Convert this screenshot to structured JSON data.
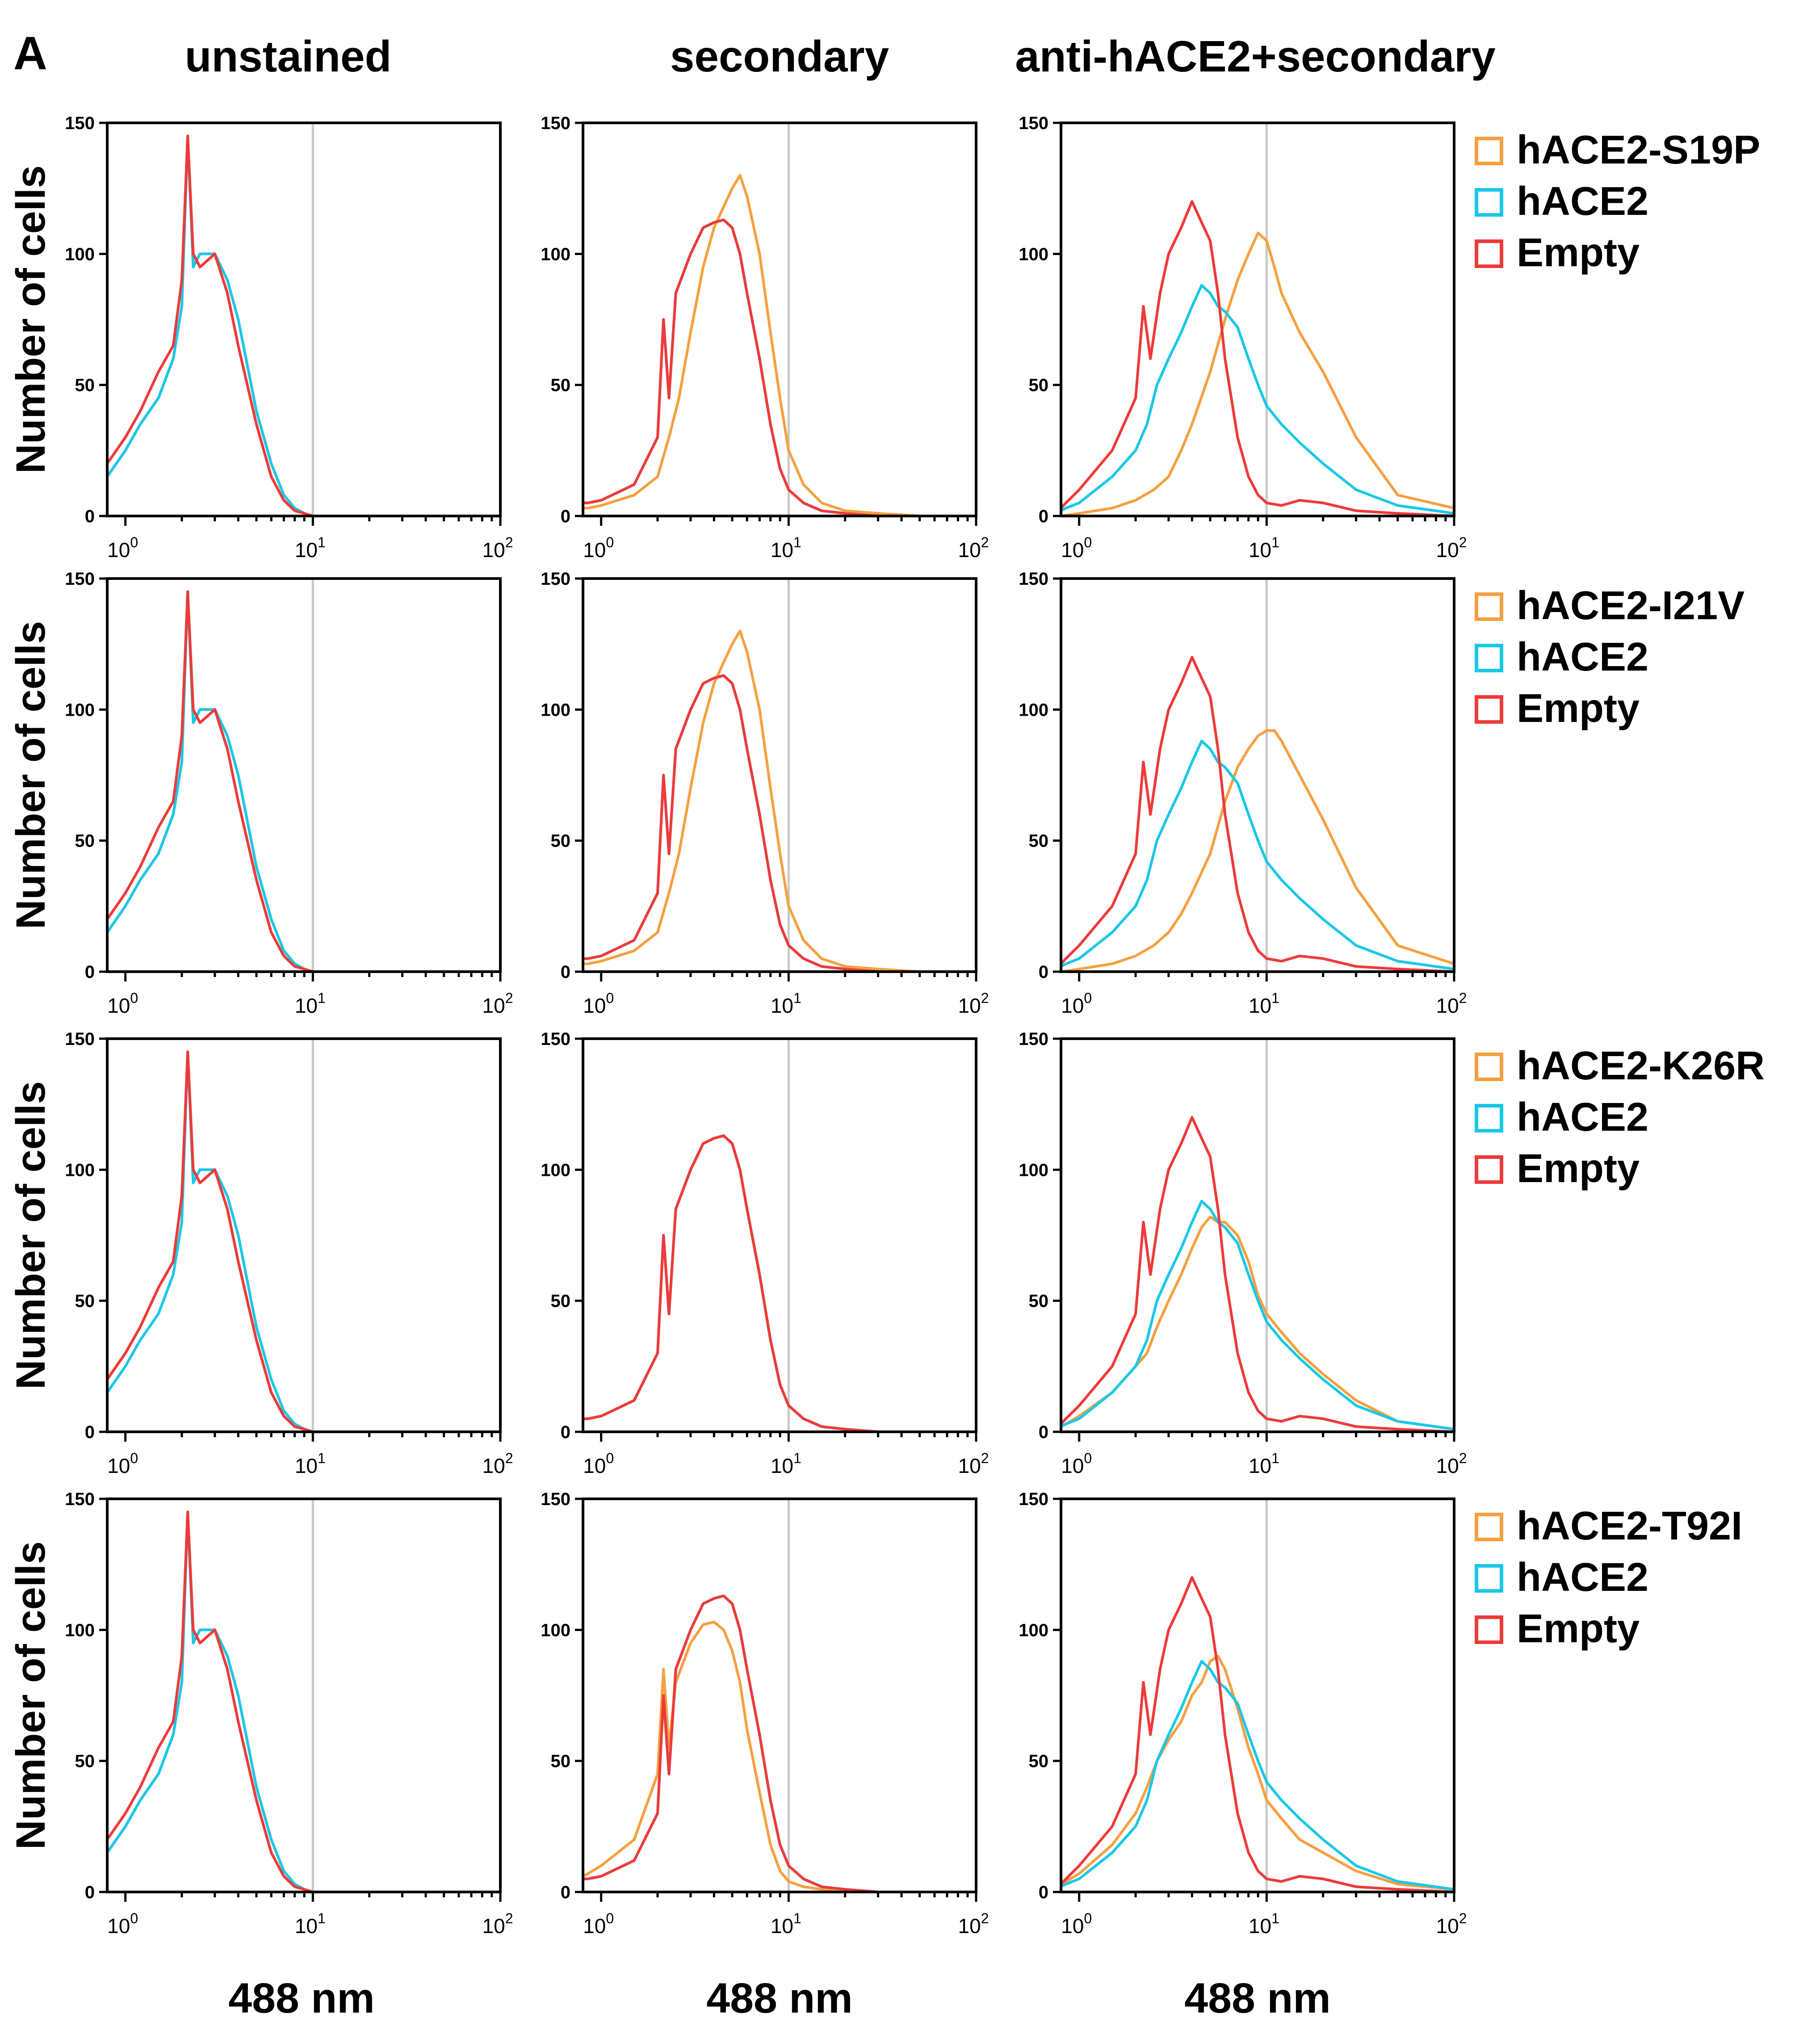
{
  "panel_label": "A",
  "column_titles": [
    "unstained",
    "secondary",
    "anti-hACE2+secondary"
  ],
  "ylabel": "Number of cells",
  "xlabel": "488 nm",
  "colors": {
    "variant": "#f5a040",
    "hACE2": "#19c8e8",
    "empty": "#ee3a3a",
    "gate": "#c8c8c8"
  },
  "legend_rows": [
    {
      "entries": [
        "hACE2-S19P",
        "hACE2",
        "Empty"
      ]
    },
    {
      "entries": [
        "hACE2-I21V",
        "hACE2",
        "Empty"
      ]
    },
    {
      "entries": [
        "hACE2-K26R",
        "hACE2",
        "Empty"
      ]
    },
    {
      "entries": [
        "hACE2-T92I",
        "hACE2",
        "Empty"
      ]
    }
  ],
  "chart_data": {
    "type": "line",
    "description_units": {
      "x": "488 nm fluorescence (log scale)",
      "y": "Number of cells"
    },
    "xscale": "log",
    "xlim": [
      0.8,
      100
    ],
    "ylim": [
      0,
      150
    ],
    "yticks": [
      0,
      50,
      100,
      150
    ],
    "xticks": [
      {
        "base": "10",
        "exp": "0",
        "value": 1
      },
      {
        "base": "10",
        "exp": "1",
        "value": 10
      },
      {
        "base": "10",
        "exp": "2",
        "value": 100
      }
    ],
    "gate_x": 10,
    "profiles": {
      "unstained": {
        "x": [
          0.8,
          1.0,
          1.2,
          1.5,
          1.8,
          2.0,
          2.15,
          2.3,
          2.5,
          3.0,
          3.5,
          4.0,
          5.0,
          6.0,
          7.0,
          8.0,
          9.0,
          10,
          20,
          50,
          100
        ],
        "y": [
          15,
          25,
          35,
          45,
          60,
          80,
          145,
          95,
          100,
          100,
          90,
          75,
          40,
          20,
          8,
          3,
          1,
          0,
          0,
          0,
          0
        ]
      },
      "unstained_alt": {
        "x": [
          0.8,
          1.0,
          1.2,
          1.5,
          1.8,
          2.0,
          2.15,
          2.3,
          2.5,
          3.0,
          3.5,
          4.0,
          5.0,
          6.0,
          7.0,
          8.0,
          9.0,
          10,
          20,
          50,
          100
        ],
        "y": [
          20,
          30,
          40,
          55,
          65,
          90,
          145,
          100,
          95,
          100,
          85,
          65,
          35,
          15,
          6,
          2,
          1,
          0,
          0,
          0,
          0
        ]
      },
      "secondary": {
        "x": [
          0.8,
          0.85,
          1.0,
          1.5,
          2.0,
          2.15,
          2.3,
          2.5,
          3.0,
          3.5,
          4.0,
          4.5,
          5.0,
          5.5,
          6.0,
          7.0,
          8.0,
          9.0,
          10,
          12,
          15,
          20,
          30,
          50,
          100
        ],
        "y": [
          5,
          5,
          6,
          12,
          30,
          75,
          45,
          85,
          100,
          110,
          112,
          113,
          110,
          100,
          85,
          60,
          35,
          18,
          10,
          5,
          2,
          1,
          0,
          0,
          0
        ]
      },
      "secondary_shift": {
        "x": [
          0.8,
          0.85,
          1.0,
          1.5,
          2.0,
          2.3,
          2.6,
          3.0,
          3.5,
          4.0,
          4.5,
          5.0,
          5.5,
          6.0,
          7.0,
          8.0,
          9.0,
          10,
          12,
          15,
          20,
          30,
          50,
          100
        ],
        "y": [
          3,
          3,
          4,
          8,
          15,
          30,
          45,
          70,
          95,
          110,
          118,
          125,
          130,
          122,
          100,
          70,
          45,
          25,
          12,
          5,
          2,
          1,
          0,
          0
        ]
      },
      "secondary_left": {
        "x": [
          0.8,
          0.85,
          1.0,
          1.5,
          2.0,
          2.15,
          2.3,
          2.5,
          3.0,
          3.5,
          4.0,
          4.5,
          5.0,
          5.5,
          6.0,
          7.0,
          8.0,
          9.0,
          10,
          12,
          15,
          20,
          30,
          50,
          100
        ],
        "y": [
          6,
          7,
          10,
          20,
          45,
          85,
          55,
          80,
          95,
          102,
          103,
          100,
          92,
          80,
          62,
          38,
          18,
          8,
          4,
          2,
          1,
          0,
          0,
          0,
          0
        ]
      },
      "empty_stained": {
        "x": [
          0.8,
          0.85,
          1.0,
          1.5,
          2.0,
          2.2,
          2.4,
          2.7,
          3.0,
          3.5,
          4.0,
          4.5,
          5.0,
          5.5,
          6.0,
          7.0,
          8.0,
          9.0,
          10,
          12,
          15,
          20,
          30,
          50,
          100
        ],
        "y": [
          3,
          5,
          10,
          25,
          45,
          80,
          60,
          85,
          100,
          110,
          120,
          112,
          105,
          85,
          60,
          30,
          15,
          8,
          5,
          4,
          6,
          5,
          2,
          1,
          0
        ]
      },
      "hace2_stained": {
        "x": [
          0.8,
          0.85,
          1.0,
          1.5,
          2.0,
          2.3,
          2.6,
          3.0,
          3.5,
          4.0,
          4.5,
          5.0,
          5.5,
          6.0,
          7.0,
          8.0,
          9.0,
          10,
          12,
          15,
          20,
          30,
          50,
          100
        ],
        "y": [
          2,
          3,
          5,
          15,
          25,
          35,
          50,
          60,
          70,
          80,
          88,
          85,
          80,
          78,
          72,
          60,
          50,
          42,
          35,
          28,
          20,
          10,
          4,
          1
        ]
      },
      "s19p_stained": {
        "x": [
          0.8,
          1.0,
          1.5,
          2.0,
          2.5,
          3.0,
          3.5,
          4.0,
          5.0,
          6.0,
          7.0,
          8.0,
          9.0,
          10,
          11,
          12,
          15,
          20,
          30,
          50,
          100
        ],
        "y": [
          0,
          1,
          3,
          6,
          10,
          15,
          25,
          35,
          55,
          75,
          90,
          100,
          108,
          105,
          95,
          85,
          70,
          55,
          30,
          8,
          3
        ]
      },
      "i21v_stained": {
        "x": [
          0.8,
          1.0,
          1.5,
          2.0,
          2.5,
          3.0,
          3.5,
          4.0,
          5.0,
          6.0,
          7.0,
          8.0,
          9.0,
          10,
          11,
          12,
          15,
          20,
          30,
          50,
          100
        ],
        "y": [
          0,
          1,
          3,
          6,
          10,
          15,
          22,
          30,
          45,
          65,
          78,
          85,
          90,
          92,
          92,
          88,
          75,
          58,
          32,
          10,
          3
        ]
      },
      "k26r_stained": {
        "x": [
          0.8,
          0.85,
          1.0,
          1.5,
          2.0,
          2.3,
          2.6,
          3.0,
          3.5,
          4.0,
          4.5,
          5.0,
          5.5,
          6.0,
          7.0,
          8.0,
          9.0,
          10,
          12,
          15,
          20,
          30,
          50,
          100
        ],
        "y": [
          2,
          3,
          6,
          15,
          25,
          30,
          40,
          50,
          60,
          70,
          78,
          82,
          80,
          80,
          75,
          65,
          52,
          45,
          38,
          30,
          22,
          12,
          4,
          1
        ]
      },
      "t92i_stained": {
        "x": [
          0.8,
          0.85,
          1.0,
          1.5,
          2.0,
          2.3,
          2.6,
          3.0,
          3.5,
          4.0,
          4.5,
          5.0,
          5.5,
          6.0,
          7.0,
          8.0,
          9.0,
          10,
          12,
          15,
          20,
          30,
          50,
          100
        ],
        "y": [
          3,
          4,
          7,
          18,
          30,
          40,
          50,
          58,
          65,
          75,
          80,
          88,
          90,
          85,
          70,
          55,
          45,
          35,
          28,
          20,
          15,
          8,
          3,
          1
        ]
      }
    },
    "panels": [
      [
        {
          "lines": [
            {
              "profile": "unstained",
              "series": "variant"
            },
            {
              "profile": "unstained",
              "series": "hACE2"
            },
            {
              "profile": "unstained_alt",
              "series": "empty"
            }
          ]
        },
        {
          "lines": [
            {
              "profile": "secondary_shift",
              "series": "variant"
            },
            {
              "profile": "secondary",
              "series": "hACE2"
            },
            {
              "profile": "secondary",
              "series": "empty"
            }
          ]
        },
        {
          "lines": [
            {
              "profile": "s19p_stained",
              "series": "variant"
            },
            {
              "profile": "hace2_stained",
              "series": "hACE2"
            },
            {
              "profile": "empty_stained",
              "series": "empty"
            }
          ]
        }
      ],
      [
        {
          "lines": [
            {
              "profile": "unstained",
              "series": "variant"
            },
            {
              "profile": "unstained",
              "series": "hACE2"
            },
            {
              "profile": "unstained_alt",
              "series": "empty"
            }
          ]
        },
        {
          "lines": [
            {
              "profile": "secondary_shift",
              "series": "variant"
            },
            {
              "profile": "secondary",
              "series": "hACE2"
            },
            {
              "profile": "secondary",
              "series": "empty"
            }
          ]
        },
        {
          "lines": [
            {
              "profile": "i21v_stained",
              "series": "variant"
            },
            {
              "profile": "hace2_stained",
              "series": "hACE2"
            },
            {
              "profile": "empty_stained",
              "series": "empty"
            }
          ]
        }
      ],
      [
        {
          "lines": [
            {
              "profile": "unstained_alt",
              "series": "variant"
            },
            {
              "profile": "unstained",
              "series": "hACE2"
            },
            {
              "profile": "unstained_alt",
              "series": "empty"
            }
          ]
        },
        {
          "lines": [
            {
              "profile": "secondary",
              "series": "variant"
            },
            {
              "profile": "secondary",
              "series": "hACE2"
            },
            {
              "profile": "secondary",
              "series": "empty"
            }
          ]
        },
        {
          "lines": [
            {
              "profile": "k26r_stained",
              "series": "variant"
            },
            {
              "profile": "hace2_stained",
              "series": "hACE2"
            },
            {
              "profile": "empty_stained",
              "series": "empty"
            }
          ]
        }
      ],
      [
        {
          "lines": [
            {
              "profile": "unstained",
              "series": "variant"
            },
            {
              "profile": "unstained",
              "series": "hACE2"
            },
            {
              "profile": "unstained_alt",
              "series": "empty"
            }
          ]
        },
        {
          "lines": [
            {
              "profile": "secondary_left",
              "series": "variant"
            },
            {
              "profile": "secondary",
              "series": "hACE2"
            },
            {
              "profile": "secondary",
              "series": "empty"
            }
          ]
        },
        {
          "lines": [
            {
              "profile": "t92i_stained",
              "series": "variant"
            },
            {
              "profile": "hace2_stained",
              "series": "hACE2"
            },
            {
              "profile": "empty_stained",
              "series": "empty"
            }
          ]
        }
      ]
    ]
  }
}
